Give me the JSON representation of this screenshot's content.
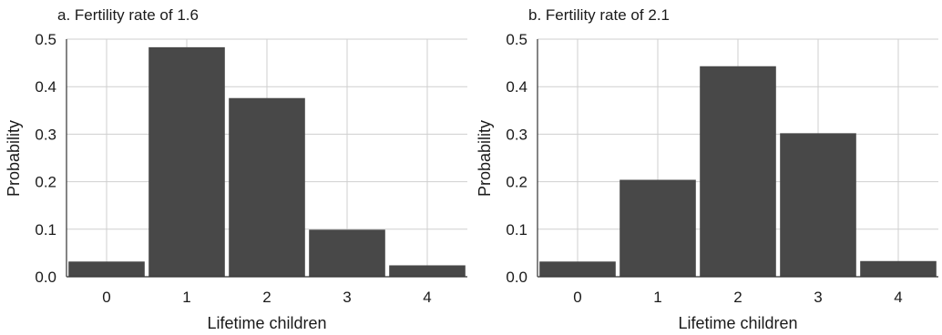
{
  "chart_data": [
    {
      "type": "bar",
      "title": "a. Fertility rate of 1.6",
      "xlabel": "Lifetime children",
      "ylabel": "Probability",
      "categories": [
        "0",
        "1",
        "2",
        "3",
        "4"
      ],
      "values": [
        0.032,
        0.483,
        0.376,
        0.099,
        0.024
      ],
      "ylim": [
        0,
        0.5
      ],
      "yticks": [
        "0.0",
        "0.1",
        "0.2",
        "0.3",
        "0.4",
        "0.5"
      ],
      "grid": true,
      "bar_color": "#484848"
    },
    {
      "type": "bar",
      "title": "b. Fertility rate of 2.1",
      "xlabel": "Lifetime children",
      "ylabel": "Probability",
      "categories": [
        "0",
        "1",
        "2",
        "3",
        "4"
      ],
      "values": [
        0.032,
        0.204,
        0.443,
        0.302,
        0.033
      ],
      "ylim": [
        0,
        0.5
      ],
      "yticks": [
        "0.0",
        "0.1",
        "0.2",
        "0.3",
        "0.4",
        "0.5"
      ],
      "grid": true,
      "bar_color": "#484848"
    }
  ]
}
